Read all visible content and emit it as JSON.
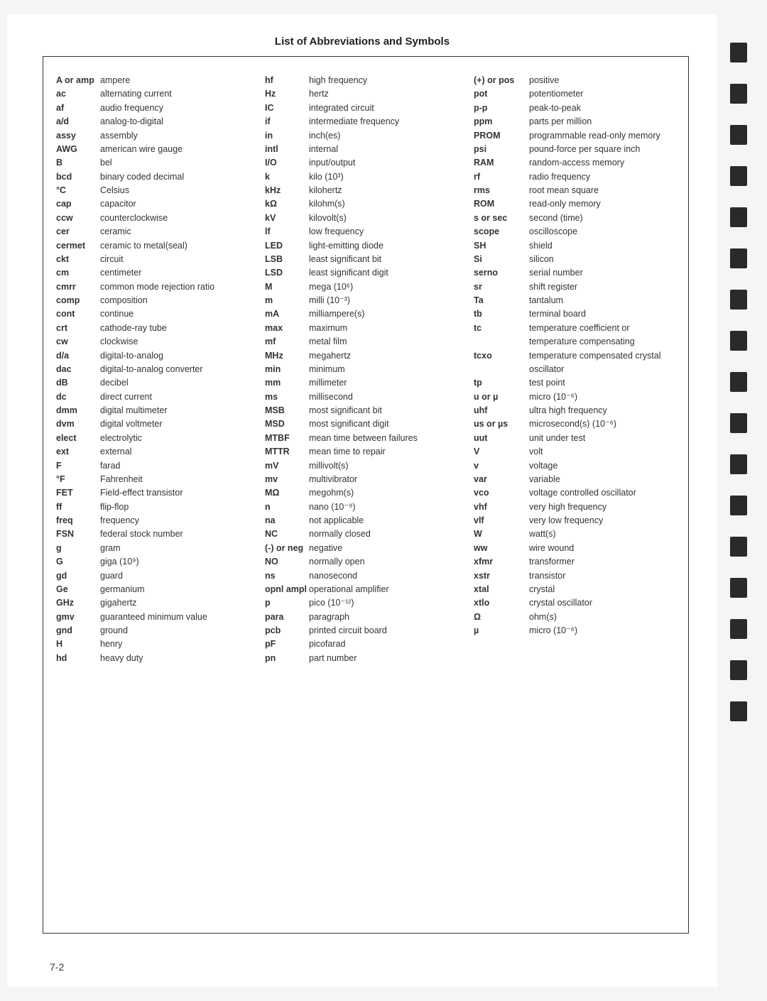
{
  "title": "List of Abbreviations and Symbols",
  "page_number": "7-2",
  "columns": [
    [
      {
        "a": "A or amp",
        "d": "ampere"
      },
      {
        "a": "ac",
        "d": "alternating current"
      },
      {
        "a": "af",
        "d": "audio frequency"
      },
      {
        "a": "a/d",
        "d": "analog-to-digital"
      },
      {
        "a": "assy",
        "d": "assembly"
      },
      {
        "a": "AWG",
        "d": "american wire gauge"
      },
      {
        "a": "B",
        "d": "bel"
      },
      {
        "a": "bcd",
        "d": "binary coded decimal"
      },
      {
        "a": "°C",
        "d": "Celsius"
      },
      {
        "a": "cap",
        "d": "capacitor"
      },
      {
        "a": "ccw",
        "d": "counterclockwise"
      },
      {
        "a": "cer",
        "d": "ceramic"
      },
      {
        "a": "cermet",
        "d": "ceramic to metal(seal)"
      },
      {
        "a": "ckt",
        "d": "circuit"
      },
      {
        "a": "cm",
        "d": "centimeter"
      },
      {
        "a": "cmrr",
        "d": "common mode rejection ratio"
      },
      {
        "a": "comp",
        "d": "composition"
      },
      {
        "a": "cont",
        "d": "continue"
      },
      {
        "a": "crt",
        "d": "cathode-ray tube"
      },
      {
        "a": "cw",
        "d": "clockwise"
      },
      {
        "a": "d/a",
        "d": "digital-to-analog"
      },
      {
        "a": "dac",
        "d": "digital-to-analog converter"
      },
      {
        "a": "dB",
        "d": "decibel"
      },
      {
        "a": "dc",
        "d": "direct current"
      },
      {
        "a": "dmm",
        "d": "digital multimeter"
      },
      {
        "a": "dvm",
        "d": "digital voltmeter"
      },
      {
        "a": "elect",
        "d": "electrolytic"
      },
      {
        "a": "ext",
        "d": "external"
      },
      {
        "a": "F",
        "d": "farad"
      },
      {
        "a": "°F",
        "d": "Fahrenheit"
      },
      {
        "a": "FET",
        "d": "Field-effect transistor"
      },
      {
        "a": "ff",
        "d": "flip-flop"
      },
      {
        "a": "freq",
        "d": "frequency"
      },
      {
        "a": "FSN",
        "d": "federal stock number"
      },
      {
        "a": "g",
        "d": "gram"
      },
      {
        "a": "G",
        "d": "giga (10⁹)"
      },
      {
        "a": "gd",
        "d": "guard"
      },
      {
        "a": "Ge",
        "d": "germanium"
      },
      {
        "a": "GHz",
        "d": "gigahertz"
      },
      {
        "a": "gmv",
        "d": "guaranteed minimum value"
      },
      {
        "a": "gnd",
        "d": "ground"
      },
      {
        "a": "H",
        "d": "henry"
      },
      {
        "a": "hd",
        "d": "heavy duty"
      }
    ],
    [
      {
        "a": "hf",
        "d": "high frequency"
      },
      {
        "a": "Hz",
        "d": "hertz"
      },
      {
        "a": "IC",
        "d": "integrated circuit"
      },
      {
        "a": "if",
        "d": "intermediate frequency"
      },
      {
        "a": "in",
        "d": "inch(es)"
      },
      {
        "a": "intl",
        "d": "internal"
      },
      {
        "a": "I/O",
        "d": "input/output"
      },
      {
        "a": "k",
        "d": "kilo (10³)"
      },
      {
        "a": "kHz",
        "d": "kilohertz"
      },
      {
        "a": "kΩ",
        "d": "kilohm(s)"
      },
      {
        "a": "kV",
        "d": "kilovolt(s)"
      },
      {
        "a": "lf",
        "d": "low frequency"
      },
      {
        "a": "LED",
        "d": "light-emitting diode"
      },
      {
        "a": "LSB",
        "d": "least significant bit"
      },
      {
        "a": "LSD",
        "d": "least significant digit"
      },
      {
        "a": "M",
        "d": "mega (10⁶)"
      },
      {
        "a": "m",
        "d": "milli (10⁻³)"
      },
      {
        "a": "mA",
        "d": "milliampere(s)"
      },
      {
        "a": "max",
        "d": "maximum"
      },
      {
        "a": "mf",
        "d": "metal film"
      },
      {
        "a": "MHz",
        "d": "megahertz"
      },
      {
        "a": "min",
        "d": "minimum"
      },
      {
        "a": "mm",
        "d": "millimeter"
      },
      {
        "a": "ms",
        "d": "millisecond"
      },
      {
        "a": "MSB",
        "d": "most significant bit"
      },
      {
        "a": "MSD",
        "d": "most significant digit"
      },
      {
        "a": "MTBF",
        "d": "mean time between failures"
      },
      {
        "a": "MTTR",
        "d": "mean time to repair"
      },
      {
        "a": "mV",
        "d": "millivolt(s)"
      },
      {
        "a": "mv",
        "d": "multivibrator"
      },
      {
        "a": "MΩ",
        "d": "megohm(s)"
      },
      {
        "a": "n",
        "d": "nano (10⁻⁹)"
      },
      {
        "a": "na",
        "d": "not applicable"
      },
      {
        "a": "NC",
        "d": "normally closed"
      },
      {
        "a": "(-) or neg",
        "d": "negative"
      },
      {
        "a": "NO",
        "d": "normally open"
      },
      {
        "a": "ns",
        "d": "nanosecond"
      },
      {
        "a": "opnl ampl",
        "d": "operational amplifier"
      },
      {
        "a": "p",
        "d": "pico (10⁻¹²)"
      },
      {
        "a": "para",
        "d": "paragraph"
      },
      {
        "a": "pcb",
        "d": "printed circuit board"
      },
      {
        "a": "pF",
        "d": "picofarad"
      },
      {
        "a": "pn",
        "d": "part number"
      }
    ],
    [
      {
        "a": "(+) or pos",
        "d": "positive"
      },
      {
        "a": "pot",
        "d": "potentiometer"
      },
      {
        "a": "p-p",
        "d": "peak-to-peak"
      },
      {
        "a": "ppm",
        "d": "parts per million"
      },
      {
        "a": "PROM",
        "d": "programmable read-only memory"
      },
      {
        "a": "psi",
        "d": "pound-force per square inch"
      },
      {
        "a": "RAM",
        "d": "random-access memory"
      },
      {
        "a": "rf",
        "d": "radio frequency"
      },
      {
        "a": "rms",
        "d": "root mean square"
      },
      {
        "a": "ROM",
        "d": "read-only memory"
      },
      {
        "a": "s or sec",
        "d": "second (time)"
      },
      {
        "a": "scope",
        "d": "oscilloscope"
      },
      {
        "a": "SH",
        "d": "shield"
      },
      {
        "a": "Si",
        "d": "silicon"
      },
      {
        "a": "serno",
        "d": "serial number"
      },
      {
        "a": "sr",
        "d": "shift register"
      },
      {
        "a": "Ta",
        "d": "tantalum"
      },
      {
        "a": "tb",
        "d": "terminal board"
      },
      {
        "a": "tc",
        "d": "temperature coefficient or temperature compensating"
      },
      {
        "a": "tcxo",
        "d": "temperature compensated crystal oscillator"
      },
      {
        "a": "tp",
        "d": "test point"
      },
      {
        "a": "u or µ",
        "d": "micro (10⁻⁶)"
      },
      {
        "a": "uhf",
        "d": "ultra high frequency"
      },
      {
        "a": "us or µs",
        "d": "microsecond(s) (10⁻⁶)"
      },
      {
        "a": "uut",
        "d": "unit under test"
      },
      {
        "a": "V",
        "d": "volt"
      },
      {
        "a": "v",
        "d": "voltage"
      },
      {
        "a": "var",
        "d": "variable"
      },
      {
        "a": "vco",
        "d": "voltage controlled oscillator"
      },
      {
        "a": "vhf",
        "d": "very high frequency"
      },
      {
        "a": "vlf",
        "d": "very low frequency"
      },
      {
        "a": "W",
        "d": "watt(s)"
      },
      {
        "a": "ww",
        "d": "wire wound"
      },
      {
        "a": "xfmr",
        "d": "transformer"
      },
      {
        "a": "xstr",
        "d": "transistor"
      },
      {
        "a": "xtal",
        "d": "crystal"
      },
      {
        "a": "xtlo",
        "d": "crystal oscillator"
      },
      {
        "a": "Ω",
        "d": "ohm(s)"
      },
      {
        "a": "µ",
        "d": "micro (10⁻⁶)"
      }
    ]
  ],
  "tab_count": 17
}
